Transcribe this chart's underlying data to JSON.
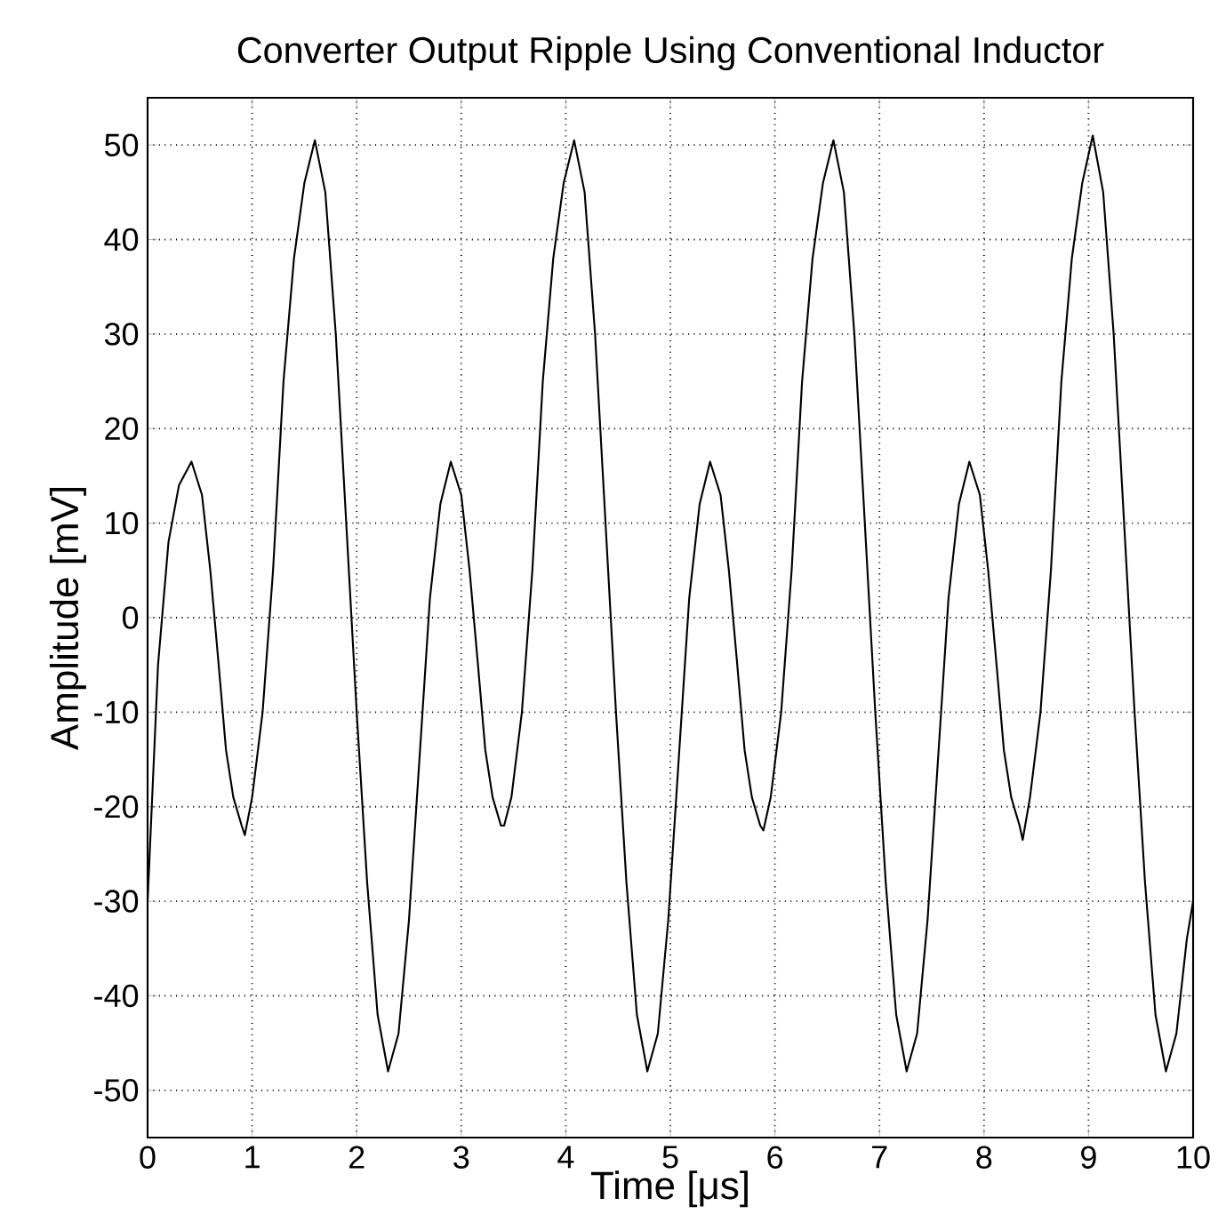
{
  "chart_data": {
    "type": "line",
    "title": "Converter Output Ripple Using Conventional Inductor",
    "xlabel": "Time [μs]",
    "ylabel": "Amplitude [mV]",
    "series": [
      {
        "color": "#000000",
        "line_style": "solid",
        "x": [
          0,
          0.1,
          0.2,
          0.3,
          0.42,
          0.52,
          0.6,
          0.68,
          0.75,
          0.82,
          0.9,
          0.93,
          1.0,
          1.1,
          1.2,
          1.3,
          1.4,
          1.5,
          1.6,
          1.7,
          1.8,
          1.9,
          2.0,
          2.1,
          2.2,
          2.3,
          2.4,
          2.5,
          2.6,
          2.7,
          2.8,
          2.9,
          3.0,
          3.08,
          3.16,
          3.23,
          3.3,
          3.38,
          3.41,
          3.48,
          3.58,
          3.68,
          3.78,
          3.88,
          3.98,
          4.08,
          4.18,
          4.28,
          4.38,
          4.48,
          4.58,
          4.68,
          4.78,
          4.88,
          4.98,
          5.08,
          5.18,
          5.28,
          5.38,
          5.48,
          5.56,
          5.64,
          5.71,
          5.78,
          5.86,
          5.89,
          5.96,
          6.06,
          6.16,
          6.26,
          6.36,
          6.46,
          6.56,
          6.66,
          6.76,
          6.86,
          6.96,
          7.06,
          7.16,
          7.26,
          7.36,
          7.46,
          7.56,
          7.66,
          7.76,
          7.86,
          7.96,
          8.04,
          8.12,
          8.19,
          8.26,
          8.34,
          8.37,
          8.44,
          8.54,
          8.64,
          8.74,
          8.84,
          8.94,
          9.04,
          9.14,
          9.24,
          9.34,
          9.44,
          9.54,
          9.64,
          9.74,
          9.84,
          9.94,
          10
        ],
        "values": [
          -30,
          -5,
          8,
          14,
          16.5,
          13,
          5,
          -5,
          -14,
          -19,
          -22,
          -23,
          -19,
          -10,
          5,
          25,
          38,
          46,
          50.5,
          45,
          30,
          10,
          -10,
          -28,
          -42,
          -48,
          -44,
          -32,
          -15,
          2,
          12,
          16.5,
          13,
          5,
          -5,
          -14,
          -19,
          -22,
          -22,
          -19,
          -10,
          5,
          25,
          38,
          46,
          50.5,
          45,
          30,
          10,
          -10,
          -28,
          -42,
          -48,
          -44,
          -32,
          -15,
          2,
          12,
          16.5,
          13,
          5,
          -5,
          -14,
          -19,
          -22,
          -22.5,
          -19,
          -10,
          5,
          25,
          38,
          46,
          50.5,
          45,
          30,
          10,
          -10,
          -28,
          -42,
          -48,
          -44,
          -32,
          -15,
          2,
          12,
          16.5,
          13,
          5,
          -5,
          -14,
          -19,
          -22,
          -23.5,
          -19,
          -10,
          5,
          25,
          38,
          46,
          51,
          45,
          30,
          10,
          -10,
          -28,
          -42,
          -48,
          -44,
          -34,
          -30
        ]
      }
    ],
    "xlim": [
      0,
      10
    ],
    "ylim": [
      -55,
      55
    ],
    "xticks": [
      0,
      1,
      2,
      3,
      4,
      5,
      6,
      7,
      8,
      9,
      10
    ],
    "yticks": [
      -50,
      -40,
      -30,
      -20,
      -10,
      0,
      10,
      20,
      30,
      40,
      50
    ],
    "grid": true
  }
}
